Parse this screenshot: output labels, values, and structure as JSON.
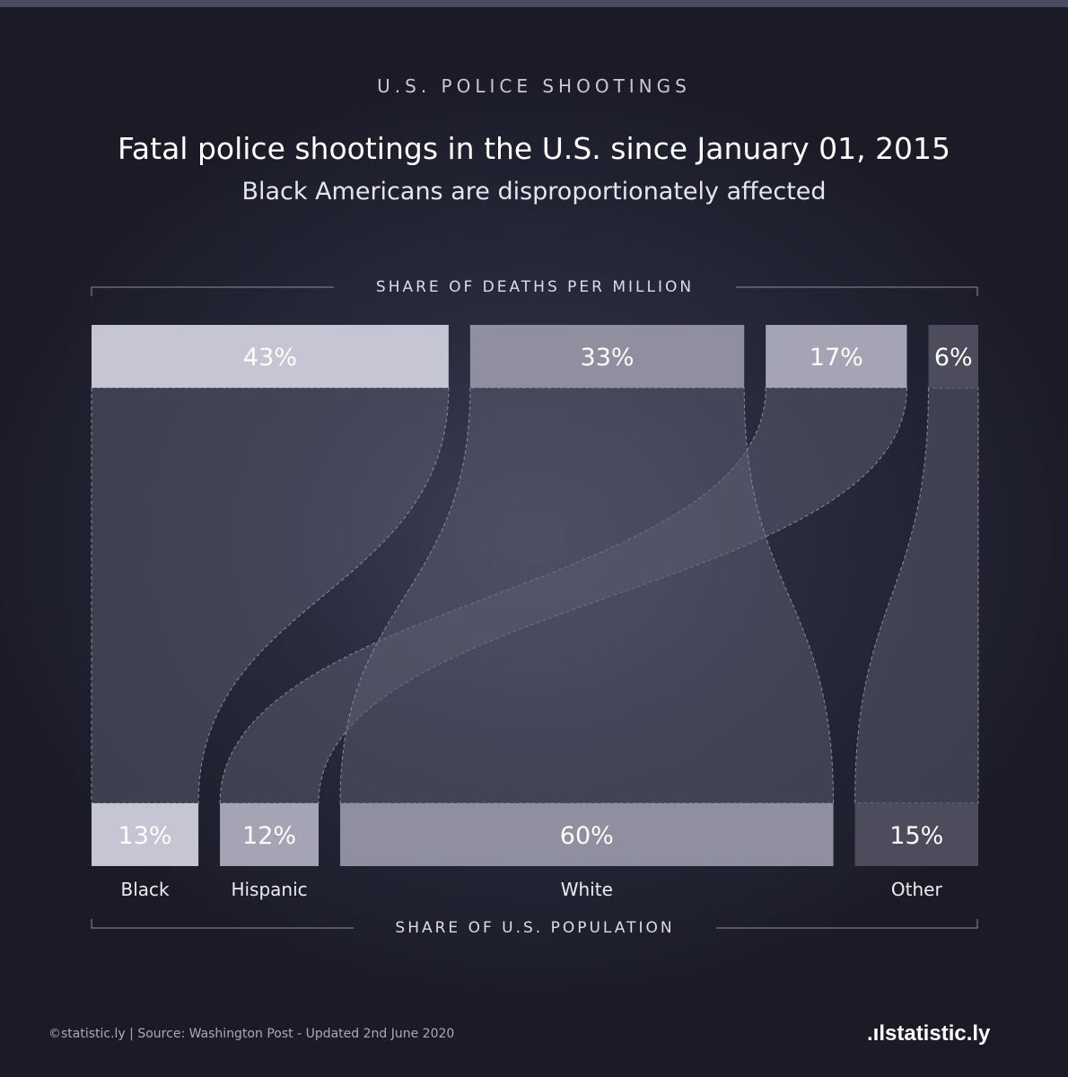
{
  "kicker": "U.S. POLICE SHOOTINGS",
  "title": "Fatal police shootings in the U.S. since January 01, 2015",
  "subtitle": "Black Americans are disproportionately affected",
  "top_axis_label": "SHARE OF DEATHS PER MILLION",
  "bottom_axis_label": "SHARE OF U.S. POPULATION",
  "footer": {
    "source": "©statistic.ly | Source: Washington Post - Updated 2nd June 2020",
    "logo": ".ılstatistic.ly"
  },
  "colors": {
    "background": "#1d1d2b",
    "black": "#c5c5d4",
    "hispanic": "#a4a4b4",
    "white": "#8f8f9f",
    "other": "#4c4c5c"
  },
  "chart_data": {
    "type": "sankey",
    "categories": [
      "Black",
      "Hispanic",
      "White",
      "Other"
    ],
    "series": [
      {
        "name": "Share of deaths per million",
        "values": [
          43,
          17,
          33,
          6
        ],
        "labels": [
          "43%",
          "17%",
          "33%",
          "6%"
        ]
      },
      {
        "name": "Share of U.S. population",
        "values": [
          13,
          12,
          60,
          15
        ],
        "labels": [
          "13%",
          "12%",
          "60%",
          "15%"
        ]
      }
    ],
    "top_order": [
      "Black",
      "White",
      "Hispanic",
      "Other"
    ],
    "bottom_order": [
      "Black",
      "Hispanic",
      "White",
      "Other"
    ],
    "unit": "%"
  }
}
